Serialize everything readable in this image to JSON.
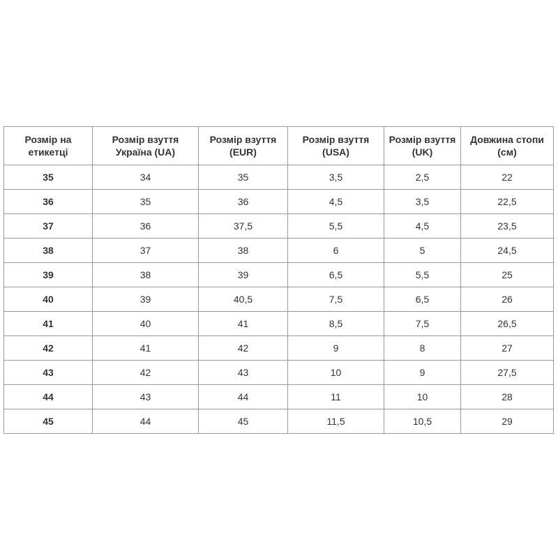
{
  "table": {
    "headers": [
      "Розмір на етикетці",
      "Розмір взуття Україна (UA)",
      "Розмір взуття (EUR)",
      "Розмір взуття (USA)",
      "Розмір взуття (UK)",
      "Довжина стопи (см)"
    ],
    "rows": [
      [
        "35",
        "34",
        "35",
        "3,5",
        "2,5",
        "22"
      ],
      [
        "36",
        "35",
        "36",
        "4,5",
        "3,5",
        "22,5"
      ],
      [
        "37",
        "36",
        "37,5",
        "5,5",
        "4,5",
        "23,5"
      ],
      [
        "38",
        "37",
        "38",
        "6",
        "5",
        "24,5"
      ],
      [
        "39",
        "38",
        "39",
        "6,5",
        "5,5",
        "25"
      ],
      [
        "40",
        "39",
        "40,5",
        "7,5",
        "6,5",
        "26"
      ],
      [
        "41",
        "40",
        "41",
        "8,5",
        "7,5",
        "26,5"
      ],
      [
        "42",
        "41",
        "42",
        "9",
        "8",
        "27"
      ],
      [
        "43",
        "42",
        "43",
        "10",
        "9",
        "27,5"
      ],
      [
        "44",
        "43",
        "44",
        "11",
        "10",
        "28"
      ],
      [
        "45",
        "44",
        "45",
        "11,5",
        "10,5",
        "29"
      ]
    ]
  }
}
